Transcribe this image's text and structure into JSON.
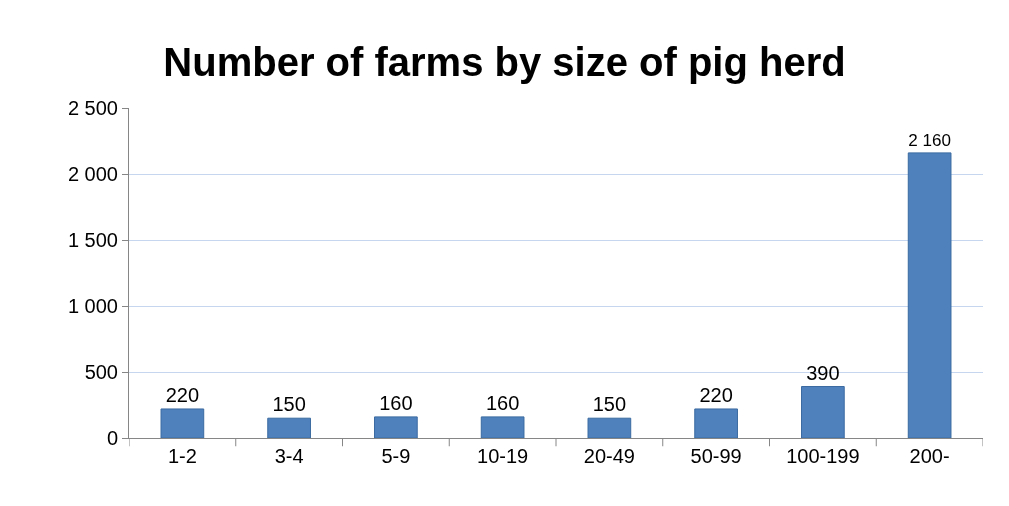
{
  "chart_data": {
    "type": "bar",
    "title": "Number of farms by size of pig herd",
    "categories": [
      "1-2",
      "3-4",
      "5-9",
      "10-19",
      "20-49",
      "50-99",
      "100-199",
      "200-"
    ],
    "values": [
      220,
      150,
      160,
      160,
      150,
      220,
      390,
      2160
    ],
    "value_labels": [
      "220",
      "150",
      "160",
      "160",
      "150",
      "220",
      "390",
      "2 160"
    ],
    "color": "#4f81bd",
    "ylim": [
      0,
      2500
    ],
    "yticks": [
      0,
      500,
      {
        "value": 1000,
        "label": "1 000"
      },
      {
        "value": 1500,
        "label": "1 500"
      },
      {
        "value": 2000,
        "label": "2 000"
      },
      {
        "value": 2500,
        "label": "2 500"
      }
    ],
    "grid": "y"
  }
}
